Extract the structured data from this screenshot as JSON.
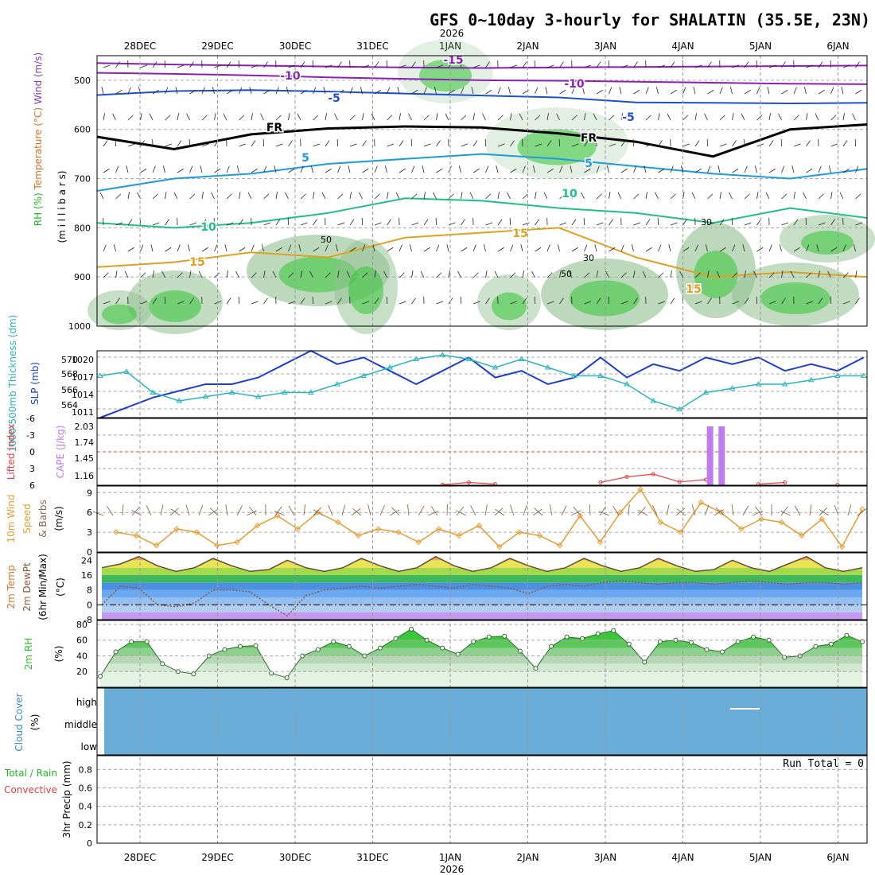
{
  "header": {
    "title": "GFS 0~10day 3-hourly for SHALATIN (35.5E, 23N)",
    "year_label": "2026",
    "run_total_label": "Run Total = 0"
  },
  "dates": [
    "28DEC",
    "29DEC",
    "30DEC",
    "31DEC",
    "1JAN",
    "2JAN",
    "3JAN",
    "4JAN",
    "5JAN",
    "6JAN"
  ],
  "colors": {
    "temp_label": "#e07020",
    "wind_label": "#7d3bb8",
    "rh_label": "#22bb22",
    "slp": "#1c3fd1",
    "thickness": "#28b4c0",
    "lifted": "#e84040",
    "cape": "#bf7cf0",
    "wind10": "#e89c30",
    "barb": "#8b6b4a",
    "cloud": "#6aacd8",
    "rh2m": "#29c529"
  },
  "chart_data": [
    {
      "panel": "upper-air cross section",
      "type": "contour",
      "ylabel_parts": [
        "RH (%)",
        "Temperature (°C)",
        "Wind (m/s)"
      ],
      "ylabel_extra": "(m i l l i b a r s)",
      "y_ticks": [
        "500",
        "600",
        "700",
        "800",
        "900",
        "1000"
      ],
      "ylim": [
        1000,
        450
      ],
      "isotherm_labels": [
        "-15",
        "-10",
        "-10",
        "-5",
        "-5",
        "FR",
        "FR",
        "5",
        "5",
        "10",
        "10",
        "15",
        "15",
        "15"
      ],
      "rh_labels": [
        "50",
        "30",
        "30",
        "50"
      ],
      "isotherms": [
        {
          "label": "-15",
          "pressure": [
            465,
            468,
            470,
            472,
            474,
            475,
            474,
            473,
            472,
            471,
            470
          ]
        },
        {
          "label": "-10",
          "pressure": [
            485,
            487,
            490,
            494,
            497,
            500,
            501,
            503,
            505,
            507,
            508
          ]
        },
        {
          "label": "-5",
          "pressure": [
            530,
            522,
            520,
            523,
            527,
            531,
            535,
            545,
            546,
            547,
            546
          ]
        },
        {
          "label": "FR",
          "pressure": [
            615,
            640,
            610,
            598,
            594,
            596,
            608,
            625,
            655,
            600,
            590
          ]
        },
        {
          "label": "5",
          "pressure": [
            725,
            700,
            690,
            670,
            660,
            650,
            660,
            675,
            690,
            700,
            680
          ]
        },
        {
          "label": "10",
          "pressure": [
            790,
            800,
            790,
            770,
            740,
            745,
            760,
            770,
            790,
            760,
            780
          ]
        },
        {
          "label": "15",
          "pressure": [
            880,
            870,
            850,
            860,
            820,
            810,
            800,
            860,
            900,
            890,
            900
          ]
        }
      ]
    },
    {
      "panel": "thickness and sea level pressure",
      "type": "line",
      "ylabel_left": "1000-500mb Thickness (dm)",
      "ylabel_right": "SLP (mb)",
      "left_ticks": [
        "570",
        "568",
        "566",
        "564"
      ],
      "right_ticks": [
        "1020",
        "1017",
        "1014",
        "1011"
      ],
      "series": [
        {
          "name": "SLP (mb)",
          "ylim": [
            1011,
            1021
          ],
          "values": [
            1011,
            1012.5,
            1014,
            1015,
            1016,
            1016,
            1017,
            1019,
            1021,
            1019,
            1020,
            1018,
            1016,
            1018,
            1020,
            1017,
            1018,
            1016,
            1017,
            1020,
            1017,
            1019,
            1018,
            1020,
            1019,
            1020,
            1018,
            1019,
            1018,
            1020
          ]
        },
        {
          "name": "1000-500mb Thickness (dm)",
          "ylim": [
            563,
            571
          ],
          "values": [
            568,
            568.5,
            566,
            565,
            565.5,
            566,
            565.5,
            566,
            566,
            567,
            568,
            569,
            570,
            570.5,
            570,
            569,
            570,
            569,
            568,
            568,
            567,
            565,
            564,
            566,
            566.5,
            567,
            567,
            567.5,
            568,
            568
          ]
        }
      ]
    },
    {
      "panel": "lifted index and CAPE",
      "type": "line+bar",
      "ylabel_left": "Lifted Index",
      "ylabel_right": "CAPE (J/kg)",
      "left_ticks": [
        "-6",
        "-3",
        "0",
        "3",
        "6"
      ],
      "right_ticks": [
        "2.03",
        "1.74",
        "1.45",
        "1.16"
      ],
      "lifted_index": {
        "ylim": [
          -6,
          6
        ],
        "values": [
          null,
          null,
          null,
          null,
          null,
          null,
          null,
          null,
          null,
          null,
          null,
          null,
          null,
          5.9,
          5.5,
          5.8,
          null,
          null,
          null,
          5.5,
          4.5,
          4.0,
          5.4,
          5.0,
          null,
          5.8,
          5.5,
          null,
          5.9,
          null
        ]
      },
      "cape_bars": [
        {
          "date_index": 7.35,
          "value": 2.03
        },
        {
          "date_index": 7.5,
          "value": 2.03
        }
      ]
    },
    {
      "panel": "10m wind",
      "type": "line",
      "ylabel": "10m Wind Speed & Barbs (m/s)",
      "ticks": [
        "9",
        "6",
        "3",
        "0"
      ],
      "ylim": [
        0,
        10
      ],
      "values": [
        3.0,
        2.5,
        1.0,
        3.5,
        3.0,
        1.0,
        1.5,
        4.0,
        5.5,
        3.5,
        6.0,
        4.5,
        2.5,
        3.5,
        3.0,
        1.5,
        3.5,
        2.5,
        4.0,
        0.8,
        3.0,
        2.5,
        1.0,
        5.5,
        1.5,
        6.0,
        9.5,
        4.5,
        3.0,
        7.5,
        6.0,
        3.5,
        5.0,
        4.5,
        2.5,
        5.0,
        0.8,
        6.5
      ]
    },
    {
      "panel": "2m temperature and dew point",
      "type": "line",
      "ylabel": "2m Temp 2m DewPt (6hr Min/Max) (°C)",
      "ticks": [
        "24",
        "16",
        "8",
        "0",
        "-8"
      ],
      "ylim": [
        -8,
        28
      ],
      "temperature": [
        20,
        22,
        26,
        21,
        18,
        20,
        25,
        21,
        18,
        19,
        24,
        20,
        18,
        20,
        25,
        21,
        18,
        20,
        26,
        21,
        18,
        20,
        25,
        21,
        18,
        20,
        25,
        21,
        18,
        20,
        25,
        21,
        18,
        19,
        24,
        20,
        18,
        22,
        26,
        20,
        18,
        20
      ],
      "dewpoint": [
        0,
        10,
        9,
        0,
        -1,
        1,
        8,
        8,
        7,
        0,
        -6,
        5,
        8,
        9,
        10,
        9,
        10,
        11,
        10,
        9,
        11,
        10,
        9,
        6,
        10,
        11,
        10,
        12,
        13,
        12,
        11,
        12,
        12,
        11,
        12,
        13,
        12,
        11,
        12,
        12,
        11,
        12
      ]
    },
    {
      "panel": "2m relative humidity",
      "type": "area",
      "ylabel": "2m RH (%)",
      "ticks": [
        "80",
        "60",
        "40",
        "20"
      ],
      "ylim": [
        0,
        85
      ],
      "values": [
        14,
        45,
        58,
        58,
        30,
        20,
        17,
        40,
        48,
        52,
        53,
        18,
        12,
        40,
        48,
        58,
        52,
        40,
        50,
        62,
        74,
        60,
        50,
        42,
        58,
        64,
        65,
        46,
        24,
        52,
        64,
        62,
        68,
        72,
        55,
        32,
        58,
        60,
        57,
        48,
        45,
        58,
        64,
        60,
        38,
        40,
        52,
        55,
        66,
        58
      ]
    },
    {
      "panel": "cloud cover",
      "type": "heatmap",
      "ylabel": "Cloud Cover (%)",
      "levels": [
        "high",
        "middle",
        "low"
      ],
      "values": [
        {
          "level": "high",
          "coverage_percent": 100
        },
        {
          "level": "middle",
          "coverage_percent": 100
        },
        {
          "level": "low",
          "coverage_percent": 100
        }
      ]
    },
    {
      "panel": "precipitation",
      "type": "bar",
      "ylabel": "3hr Precip (mm)",
      "legend_parts": [
        "Total / Rain",
        "Convective"
      ],
      "ticks": [
        "0.8",
        "0.6",
        "0.4",
        "0.2",
        "0"
      ],
      "ylim": [
        0,
        0.95
      ],
      "values": [],
      "run_total": 0
    }
  ]
}
